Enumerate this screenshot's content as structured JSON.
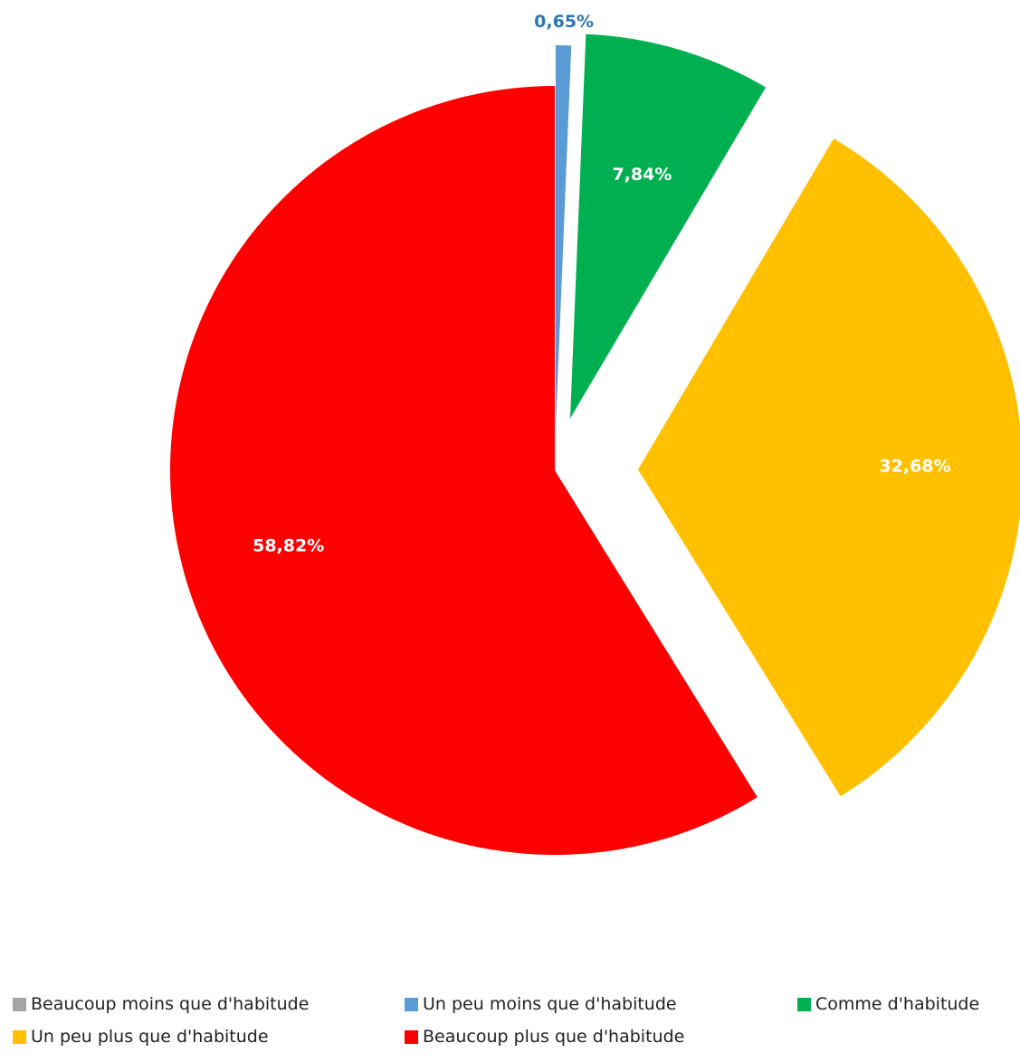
{
  "chart_data": {
    "type": "pie",
    "title": "",
    "start_angle_deg": 0,
    "direction": "clockwise",
    "exploded": true,
    "legend_position": "bottom",
    "slices": [
      {
        "name": "Beaucoup moins que d'habitude",
        "value": 0.0,
        "label": "",
        "color": "#A5A5A5",
        "label_color": "#ffffff"
      },
      {
        "name": "Un peu moins que d'habitude",
        "value": 0.65,
        "label": "0,65%",
        "color": "#5B9BD5",
        "label_color": "#2E75B6"
      },
      {
        "name": "Comme d'habitude",
        "value": 7.84,
        "label": "7,84%",
        "color": "#00B050",
        "label_color": "#ffffff"
      },
      {
        "name": "Un peu plus que d'habitude",
        "value": 32.68,
        "label": "32,68%",
        "color": "#FFC000",
        "label_color": "#ffffff"
      },
      {
        "name": "Beaucoup plus que d'habitude",
        "value": 58.82,
        "label": "58,82%",
        "color": "#FF0000",
        "label_color": "#ffffff"
      }
    ]
  }
}
